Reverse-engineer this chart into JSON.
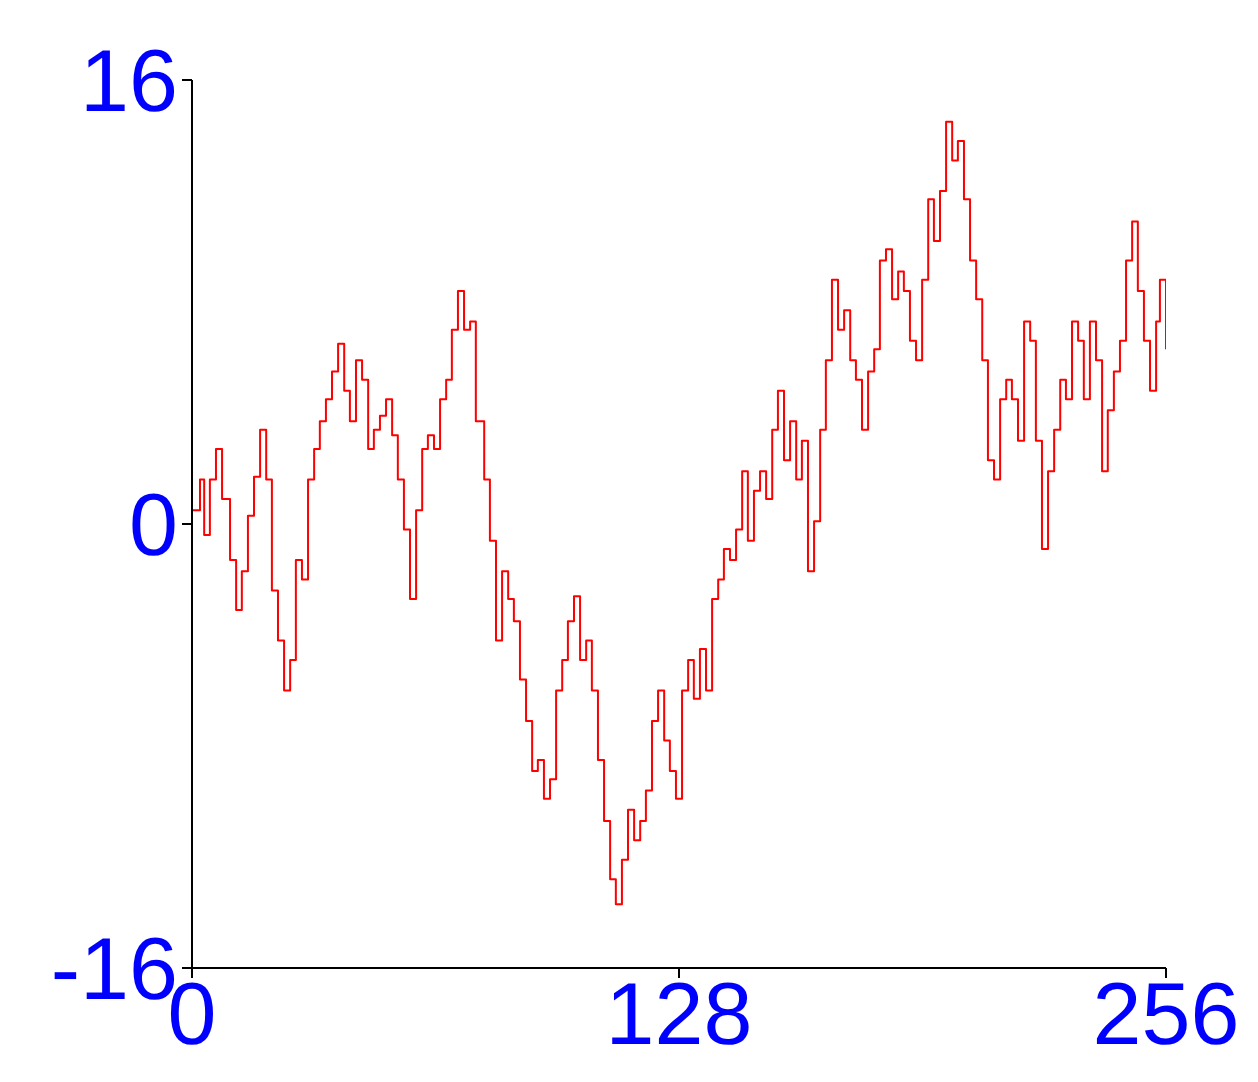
{
  "chart_data": {
    "type": "step",
    "x": [
      0,
      2.1,
      3.2,
      4.7,
      6.3,
      7.9,
      10.0,
      11.6,
      13.1,
      14.7,
      16.3,
      17.9,
      19.5,
      21.0,
      22.6,
      24.2,
      25.8,
      27.3,
      28.9,
      30.5,
      32.1,
      33.6,
      35.2,
      36.8,
      38.4,
      40.0,
      41.5,
      43.1,
      44.7,
      46.3,
      47.8,
      49.4,
      51.0,
      52.6,
      54.1,
      55.7,
      57.3,
      58.9,
      60.5,
      62.0,
      63.6,
      65.2,
      66.8,
      68.3,
      69.9,
      71.5,
      73.1,
      74.6,
      76.8,
      78.3,
      79.9,
      81.5,
      83.1,
      84.6,
      86.2,
      87.8,
      89.4,
      90.9,
      92.5,
      94.1,
      95.7,
      97.3,
      98.8,
      100.4,
      102.0,
      103.6,
      105.1,
      106.7,
      108.3,
      109.9,
      111.4,
      113.0,
      114.6,
      116.2,
      117.8,
      119.3,
      120.9,
      122.5,
      124.1,
      125.6,
      127.2,
      128.8,
      130.4,
      131.9,
      133.5,
      135.1,
      136.7,
      138.3,
      139.8,
      141.4,
      143.0,
      144.6,
      146.1,
      147.7,
      149.3,
      150.9,
      152.5,
      154.0,
      155.6,
      157.2,
      158.8,
      160.3,
      161.9,
      163.5,
      165.1,
      166.6,
      168.2,
      169.8,
      171.4,
      173.0,
      174.5,
      176.1,
      177.7,
      179.3,
      180.8,
      182.4,
      184.0,
      185.6,
      187.1,
      188.7,
      190.3,
      191.9,
      193.5,
      195.0,
      196.6,
      198.2,
      199.8,
      201.3,
      202.9,
      204.5,
      206.1,
      207.7,
      209.2,
      210.8,
      212.4,
      214.0,
      215.5,
      217.1,
      218.7,
      220.3,
      221.8,
      223.4,
      225.0,
      226.6,
      228.2,
      229.7,
      231.3,
      232.9,
      234.4,
      236.0,
      237.6,
      239.2,
      240.7,
      242.3,
      243.9,
      245.5,
      247.1,
      248.6,
      250.2,
      251.8,
      253.4,
      254.4,
      256
    ],
    "series": [
      {
        "color": "#ff0000",
        "values": [
          0.5,
          1.6,
          -0.4,
          1.6,
          2.7,
          0.9,
          -1.3,
          -3.1,
          -1.7,
          0.3,
          1.7,
          3.4,
          1.6,
          -2.4,
          -4.2,
          -6.0,
          -4.9,
          -1.3,
          -2.0,
          1.6,
          2.7,
          3.7,
          4.5,
          5.5,
          6.5,
          4.8,
          3.7,
          5.9,
          5.2,
          2.7,
          3.4,
          3.9,
          4.5,
          3.2,
          1.6,
          -0.2,
          -2.7,
          0.5,
          2.7,
          3.2,
          2.7,
          4.5,
          5.2,
          7.0,
          8.4,
          7.0,
          7.3,
          3.7,
          1.6,
          -0.6,
          -4.2,
          -1.7,
          -2.7,
          -3.5,
          -5.6,
          -7.1,
          -8.9,
          -8.5,
          -9.9,
          -9.2,
          -6.0,
          -4.9,
          -3.5,
          -2.6,
          -4.9,
          -4.2,
          -6.0,
          -8.5,
          -10.7,
          -12.8,
          -13.7,
          -12.1,
          -10.3,
          -11.4,
          -10.7,
          -9.6,
          -7.1,
          -6.0,
          -7.8,
          -8.9,
          -9.9,
          -6.0,
          -4.9,
          -6.3,
          -4.5,
          -6.0,
          -2.7,
          -2.0,
          -0.9,
          -1.3,
          -0.2,
          1.9,
          -0.6,
          1.2,
          1.9,
          0.9,
          3.4,
          4.8,
          2.3,
          3.7,
          1.6,
          3.0,
          -1.7,
          0.1,
          3.4,
          5.9,
          8.8,
          7.0,
          7.7,
          5.9,
          5.2,
          3.4,
          5.5,
          6.3,
          9.5,
          9.9,
          8.1,
          9.1,
          8.4,
          6.6,
          5.9,
          8.8,
          11.7,
          10.2,
          12.0,
          14.5,
          13.1,
          13.8,
          11.7,
          9.5,
          8.1,
          5.9,
          2.3,
          1.6,
          4.5,
          5.2,
          4.5,
          3.0,
          7.3,
          6.6,
          3.0,
          -0.9,
          1.9,
          3.4,
          5.2,
          4.5,
          7.3,
          6.6,
          4.5,
          7.3,
          5.9,
          1.9,
          4.1,
          5.5,
          6.6,
          9.5,
          10.9,
          8.4,
          6.6,
          4.8,
          7.3,
          8.8,
          6.3
        ]
      }
    ],
    "xlim": [
      0,
      256
    ],
    "xticks": [
      0,
      128,
      256
    ],
    "ylim": [
      -16,
      16
    ],
    "yticks": [
      -16,
      0,
      16
    ],
    "marker": "none",
    "line_style": "solid",
    "grid": false,
    "legend": false
  }
}
